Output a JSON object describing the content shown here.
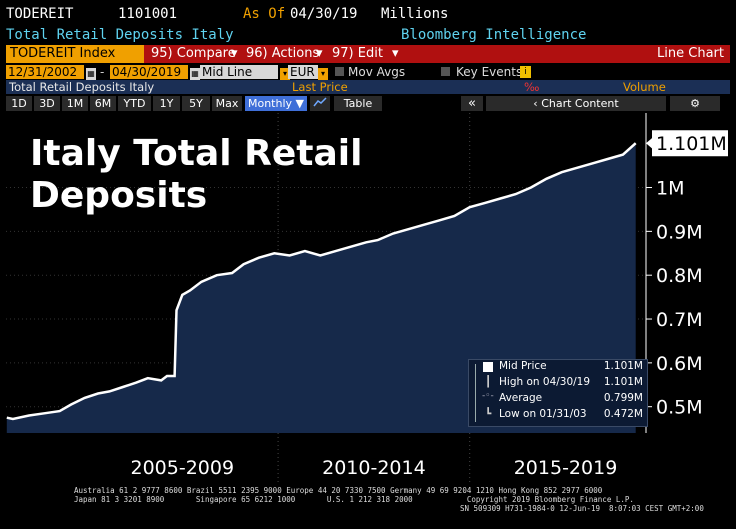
{
  "header": {
    "ticker": "TODEREIT",
    "code": "1101001",
    "asof_label": "As Of",
    "asof_date": "04/30/19",
    "units": "Millions",
    "description": "Total Retail Deposits Italy",
    "source": "Bloomberg Intelligence"
  },
  "toolbar": {
    "index_field": "TODEREIT Index",
    "compare": "95) Compare",
    "actions": "96) Actions",
    "edit": "97) Edit",
    "view": "Line Chart"
  },
  "controls": {
    "start_date": "12/31/2002",
    "end_date": "04/30/2019",
    "line_mode": "Mid Line",
    "currency": "EUR",
    "mov_avgs": "Mov Avgs",
    "key_events": "Key Events",
    "key_events_badge": "i"
  },
  "legend_strip": {
    "series": "Total Retail Deposits Italy",
    "last_price": "Last Price",
    "percent_symbol": "‰",
    "volume": "Volume"
  },
  "range_buttons": [
    "1D",
    "3D",
    "1M",
    "6M",
    "YTD",
    "1Y",
    "5Y",
    "Max"
  ],
  "range_extra": {
    "frequency": "Monthly",
    "table": "Table",
    "collapse": "«",
    "chart_content": "Chart Content",
    "settings_icon": "gear-icon",
    "chart_type_icon": "line-chart-icon"
  },
  "colors": {
    "accent_red": "#b01010",
    "bar_orange": "#f0a000",
    "area_fill": "#16294a",
    "line": "#ffffff"
  },
  "chart_data": {
    "type": "area",
    "title": "Italy Total Retail Deposits",
    "last_value_label": "1.101M",
    "y_ticks": [
      "0.5M",
      "0.6M",
      "0.7M",
      "0.8M",
      "0.9M",
      "1M"
    ],
    "y_tick_values": [
      0.5,
      0.6,
      0.7,
      0.8,
      0.9,
      1.0
    ],
    "ylim": [
      0.44,
      1.17
    ],
    "xlim": [
      2002.9,
      2019.6
    ],
    "period_labels": [
      "2005-2009",
      "2010-2014",
      "2015-2019"
    ],
    "period_centers": [
      2007.5,
      2012.5,
      2017.5
    ],
    "period_boundaries": [
      2010.0,
      2015.0
    ],
    "x": [
      2002.92,
      2003.08,
      2003.5,
      2003.9,
      2004.3,
      2004.6,
      2004.95,
      2005.3,
      2005.6,
      2005.95,
      2006.3,
      2006.6,
      2006.95,
      2007.1,
      2007.3,
      2007.35,
      2007.5,
      2007.7,
      2008.0,
      2008.4,
      2008.8,
      2009.1,
      2009.5,
      2009.9,
      2010.3,
      2010.7,
      2011.1,
      2011.5,
      2011.9,
      2012.3,
      2012.6,
      2013.0,
      2013.4,
      2013.8,
      2014.2,
      2014.6,
      2015.0,
      2015.4,
      2015.8,
      2016.2,
      2016.6,
      2017.0,
      2017.4,
      2017.8,
      2018.2,
      2018.6,
      2019.0,
      2019.33
    ],
    "values": [
      0.475,
      0.472,
      0.48,
      0.485,
      0.49,
      0.505,
      0.52,
      0.53,
      0.535,
      0.545,
      0.555,
      0.565,
      0.56,
      0.57,
      0.57,
      0.72,
      0.755,
      0.765,
      0.785,
      0.8,
      0.805,
      0.825,
      0.84,
      0.85,
      0.845,
      0.855,
      0.845,
      0.855,
      0.865,
      0.875,
      0.88,
      0.895,
      0.905,
      0.915,
      0.925,
      0.935,
      0.955,
      0.965,
      0.975,
      0.985,
      1.0,
      1.02,
      1.035,
      1.045,
      1.055,
      1.065,
      1.075,
      1.101
    ],
    "legend": {
      "mid_price_label": "Mid Price",
      "mid_price_value": "1.101M",
      "high_label": "High on 04/30/19",
      "high_value": "1.101M",
      "average_label": "Average",
      "average_value": "0.799M",
      "low_label": "Low on 01/31/03",
      "low_value": "0.472M"
    }
  },
  "footer": {
    "line1": "Australia 61 2 9777 8600 Brazil 5511 2395 9000 Europe 44 20 7330 7500 Germany 49 69 9204 1210 Hong Kong 852 2977 6000",
    "line2": "Japan 81 3 3201 8900       Singapore 65 6212 1000       U.S. 1 212 318 2000            Copyright 2019 Bloomberg Finance L.P.",
    "line3": "SN 509309 H731-1984-0 12-Jun-19  8:07:03 CEST GMT+2:00"
  }
}
